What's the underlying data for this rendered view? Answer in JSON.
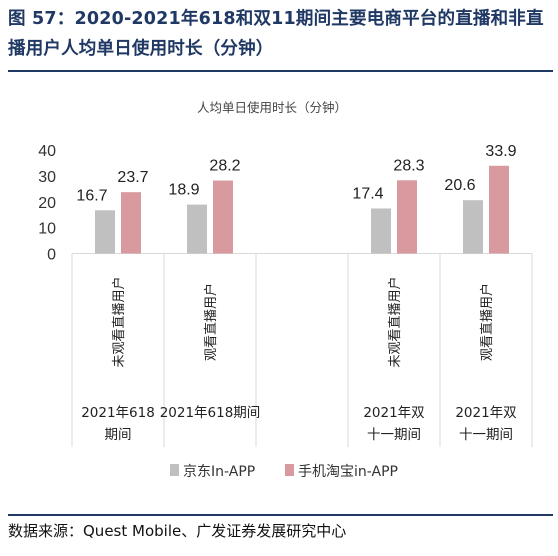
{
  "figure": {
    "title": "图 57：2020-2021年618和双11期间主要电商平台的直播和非直播用户人均单日使用时长（分钟）",
    "source": "数据来源：Quest Mobile、广发证券发展研究中心"
  },
  "colors": {
    "jd": "#c0c0c0",
    "taobao": "#d89a9f",
    "title": "#1f3864",
    "grid": "#d9d9d9"
  },
  "chart_data": {
    "type": "bar",
    "title": "人均单日使用时长（分钟）",
    "ylim": [
      0,
      40
    ],
    "yticks": [
      0,
      10,
      20,
      30,
      40
    ],
    "grid": false,
    "legend_position": "bottom",
    "categories": [
      "未观看直播用户",
      "观看直播用户",
      "",
      "未观看直播用户",
      "观看直播用户"
    ],
    "groups": [
      "2021年618期间",
      "2021年618期间",
      "",
      "2021年双十一期间",
      "2021年双十一期间"
    ],
    "group_labels": [
      {
        "lines": [
          "2021年618",
          "期间"
        ]
      },
      {
        "lines": [
          "2021年618期间"
        ]
      },
      {
        "lines": []
      },
      {
        "lines": [
          "2021年双",
          "十一期间"
        ]
      },
      {
        "lines": [
          "2021年双",
          "十一期间"
        ]
      }
    ],
    "series": [
      {
        "name": "京东In-APP",
        "values": [
          16.7,
          18.9,
          null,
          17.4,
          20.6
        ]
      },
      {
        "name": "手机淘宝in-APP",
        "values": [
          23.7,
          28.2,
          null,
          28.3,
          33.9
        ]
      }
    ]
  }
}
